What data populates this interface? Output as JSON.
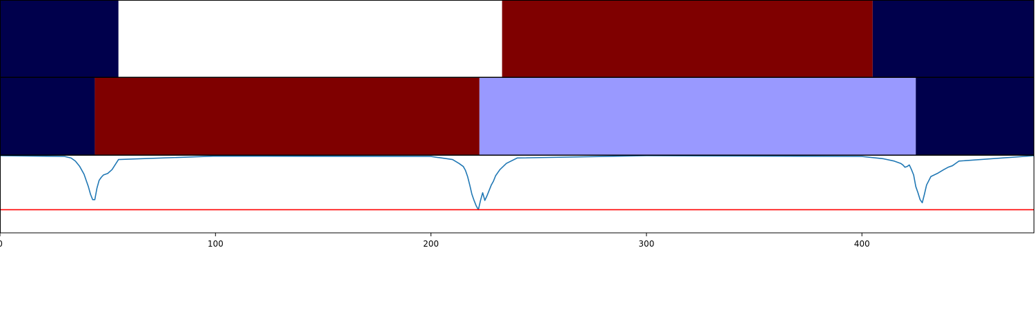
{
  "chart_data": [
    {
      "type": "heatmap",
      "panel": "segments-row-1",
      "xlim": [
        0,
        480
      ],
      "segments": [
        {
          "start": 0,
          "end": 55,
          "color": "#00004c"
        },
        {
          "start": 55,
          "end": 233,
          "color": "#ffffff"
        },
        {
          "start": 233,
          "end": 405,
          "color": "#7f0000"
        },
        {
          "start": 405,
          "end": 480,
          "color": "#00004c"
        }
      ]
    },
    {
      "type": "heatmap",
      "panel": "segments-row-2",
      "xlim": [
        0,
        480
      ],
      "segments": [
        {
          "start": 0,
          "end": 44,
          "color": "#00004c"
        },
        {
          "start": 44,
          "end": 222.5,
          "color": "#7f0000"
        },
        {
          "start": 222.5,
          "end": 425,
          "color": "#9999ff"
        },
        {
          "start": 425,
          "end": 480,
          "color": "#00004c"
        }
      ]
    },
    {
      "type": "line",
      "panel": "signal",
      "xlim": [
        0,
        480
      ],
      "ylim": [
        0,
        1
      ],
      "grid": false,
      "xticks": [
        0,
        100,
        200,
        300,
        400
      ],
      "xtick_labels": [
        "0",
        "100",
        "200",
        "300",
        "400"
      ],
      "series": [
        {
          "color": "#1f77b4",
          "x": [
            0,
            30,
            33,
            35,
            37,
            39,
            40,
            41,
            42,
            43,
            44,
            45,
            46,
            47,
            48,
            50,
            52,
            55,
            100,
            200,
            210,
            213,
            215,
            216,
            217,
            218,
            219,
            220,
            221,
            222,
            223,
            224,
            225,
            226,
            227,
            228,
            229,
            230,
            232,
            235,
            240,
            300,
            400,
            410,
            415,
            418,
            419,
            420,
            421,
            422,
            423,
            424,
            425,
            426,
            427,
            428,
            429,
            430,
            432,
            435,
            438,
            440,
            442,
            445,
            480
          ],
          "y": [
            1.0,
            0.99,
            0.97,
            0.93,
            0.86,
            0.76,
            0.68,
            0.6,
            0.5,
            0.43,
            0.43,
            0.58,
            0.68,
            0.72,
            0.75,
            0.77,
            0.82,
            0.95,
            0.995,
            0.99,
            0.95,
            0.9,
            0.86,
            0.81,
            0.73,
            0.62,
            0.5,
            0.42,
            0.35,
            0.3,
            0.42,
            0.52,
            0.42,
            0.48,
            0.55,
            0.62,
            0.67,
            0.74,
            0.82,
            0.9,
            0.97,
            1.0,
            0.99,
            0.96,
            0.93,
            0.9,
            0.88,
            0.85,
            0.86,
            0.88,
            0.82,
            0.75,
            0.6,
            0.52,
            0.43,
            0.39,
            0.5,
            0.62,
            0.73,
            0.77,
            0.82,
            0.85,
            0.87,
            0.93,
            1.0
          ]
        },
        {
          "color": "#ff0000",
          "x": [
            0,
            480
          ],
          "y": [
            0.3,
            0.3
          ]
        }
      ]
    }
  ]
}
